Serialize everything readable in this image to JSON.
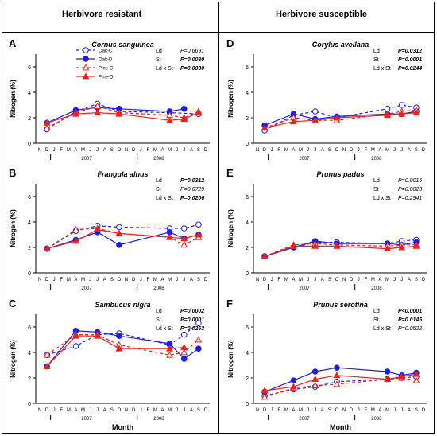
{
  "headers": {
    "left": "Herbivore resistant",
    "right": "Herbivore susceptible"
  },
  "legend": [
    "Oak-C",
    "Oak-D",
    "Pine-C",
    "Pine-D"
  ],
  "colors": {
    "oak": "#1f1fd6",
    "pine": "#e8231f"
  },
  "ylabel": "Nitrogen (%)",
  "xlabel": "Month",
  "months": [
    "N",
    "D",
    "J",
    "F",
    "M",
    "A",
    "M",
    "J",
    "J",
    "A",
    "S",
    "O",
    "N",
    "D",
    "J",
    "F",
    "M",
    "A",
    "M",
    "J",
    "J",
    "A",
    "S",
    "D"
  ],
  "years": [
    "2007",
    "2008"
  ],
  "chart_data": [
    {
      "type": "line",
      "letter": "A",
      "title": "Cornus sanguinea",
      "ylim": [
        0,
        7
      ],
      "yticks": [
        0,
        2,
        4,
        6
      ],
      "stats": [
        {
          "label": "Ld",
          "p": "P=0.6691"
        },
        {
          "label": "St",
          "p": "P=0.0080"
        },
        {
          "label": "Ld x St",
          "p": "P=0.0030"
        }
      ],
      "stats_bold": [
        false,
        true,
        true
      ],
      "series": [
        {
          "name": "Oak-C",
          "x": [
            1,
            5,
            8,
            11,
            18,
            22
          ],
          "values": [
            1.1,
            2.5,
            3.1,
            2.5,
            2.4,
            2.3
          ]
        },
        {
          "name": "Oak-D",
          "x": [
            1,
            5,
            8,
            11,
            18,
            20
          ],
          "values": [
            1.6,
            2.6,
            2.8,
            2.7,
            2.5,
            2.7
          ]
        },
        {
          "name": "Pine-C",
          "x": [
            1,
            5,
            8,
            11,
            18,
            20,
            22
          ],
          "values": [
            1.2,
            2.4,
            2.9,
            2.4,
            2.2,
            2.0,
            2.5
          ]
        },
        {
          "name": "Pine-D",
          "x": [
            1,
            5,
            8,
            11,
            18,
            20,
            22
          ],
          "values": [
            1.6,
            2.3,
            2.4,
            2.3,
            1.8,
            1.9,
            2.4
          ]
        }
      ],
      "show_legend": true,
      "show_xlabel": false
    },
    {
      "type": "line",
      "letter": "B",
      "title": "Frangula alnus",
      "ylim": [
        0,
        7
      ],
      "yticks": [
        0,
        2,
        4,
        6
      ],
      "stats": [
        {
          "label": "Ld",
          "p": "P=0.0312"
        },
        {
          "label": "St",
          "p": "P=0.0729"
        },
        {
          "label": "Ld x St",
          "p": "P=0.0206"
        }
      ],
      "stats_bold": [
        true,
        false,
        true
      ],
      "series": [
        {
          "name": "Oak-C",
          "x": [
            1,
            5,
            8,
            11,
            18,
            20,
            22
          ],
          "values": [
            1.9,
            3.3,
            3.7,
            3.6,
            3.5,
            3.5,
            3.8
          ]
        },
        {
          "name": "Oak-D",
          "x": [
            1,
            5,
            8,
            11,
            18,
            20,
            22
          ],
          "values": [
            1.9,
            2.6,
            3.2,
            2.2,
            3.2,
            2.7,
            3.0
          ]
        },
        {
          "name": "Pine-C",
          "x": [
            1,
            5,
            8,
            11,
            18,
            20,
            22
          ],
          "values": [
            1.9,
            3.4,
            3.5,
            3.1,
            2.8,
            2.2,
            2.8
          ]
        },
        {
          "name": "Pine-D",
          "x": [
            1,
            5,
            8,
            11,
            18,
            20,
            22
          ],
          "values": [
            1.9,
            2.5,
            3.4,
            3.1,
            2.8,
            2.7,
            3.0
          ]
        }
      ],
      "show_legend": false,
      "show_xlabel": false
    },
    {
      "type": "line",
      "letter": "C",
      "title": "Sambucus nigra",
      "ylim": [
        0,
        7
      ],
      "yticks": [
        0,
        2,
        4,
        6
      ],
      "stats": [
        {
          "label": "Ld",
          "p": "P=0.0002"
        },
        {
          "label": "St",
          "p": "P=0.0001"
        },
        {
          "label": "Ld x St",
          "p": "P=0.0263"
        }
      ],
      "stats_bold": [
        true,
        true,
        true
      ],
      "series": [
        {
          "name": "Oak-C",
          "x": [
            1,
            5,
            8,
            11,
            18,
            20,
            22
          ],
          "values": [
            3.8,
            4.5,
            5.4,
            5.5,
            4.6,
            5.4,
            6.3
          ]
        },
        {
          "name": "Oak-D",
          "x": [
            1,
            5,
            8,
            11,
            18,
            20,
            22
          ],
          "values": [
            2.9,
            5.7,
            5.6,
            5.3,
            4.7,
            3.5,
            4.3
          ]
        },
        {
          "name": "Pine-C",
          "x": [
            1,
            5,
            8,
            11,
            18,
            20,
            22
          ],
          "values": [
            3.8,
            5.4,
            5.4,
            4.6,
            3.8,
            4.0,
            5.0
          ]
        },
        {
          "name": "Pine-D",
          "x": [
            1,
            5,
            8,
            11,
            18,
            20
          ],
          "values": [
            2.9,
            5.3,
            5.3,
            4.3,
            4.3,
            4.4
          ]
        }
      ],
      "show_legend": false,
      "show_xlabel": true
    },
    {
      "type": "line",
      "letter": "D",
      "title": "Corylus avellana",
      "ylim": [
        0,
        7
      ],
      "yticks": [
        0,
        2,
        4,
        6
      ],
      "stats": [
        {
          "label": "Ld",
          "p": "P=0.0312"
        },
        {
          "label": "St",
          "p": "P=0.0001"
        },
        {
          "label": "Ld x St",
          "p": "P=0.0244"
        }
      ],
      "stats_bold": [
        true,
        true,
        true
      ],
      "series": [
        {
          "name": "Oak-C",
          "x": [
            1,
            5,
            8,
            11,
            18,
            20,
            22
          ],
          "values": [
            1.0,
            2.2,
            2.5,
            2.0,
            2.7,
            3.0,
            2.8
          ]
        },
        {
          "name": "Oak-D",
          "x": [
            1,
            5,
            8,
            11,
            18,
            20,
            22
          ],
          "values": [
            1.4,
            2.3,
            1.9,
            2.1,
            2.3,
            2.3,
            2.5
          ]
        },
        {
          "name": "Pine-C",
          "x": [
            1,
            5,
            8,
            11,
            18,
            20,
            22
          ],
          "values": [
            1.2,
            2.0,
            1.8,
            1.8,
            2.3,
            2.5,
            2.6
          ]
        },
        {
          "name": "Pine-D",
          "x": [
            1,
            5,
            8,
            11,
            18,
            20,
            22
          ],
          "values": [
            1.2,
            1.7,
            1.8,
            2.0,
            2.2,
            2.3,
            2.4
          ]
        }
      ],
      "show_legend": false,
      "show_xlabel": false
    },
    {
      "type": "line",
      "letter": "E",
      "title": "Prunus padus",
      "ylim": [
        0,
        7
      ],
      "yticks": [
        0,
        2,
        4,
        6
      ],
      "stats": [
        {
          "label": "Ld",
          "p": "P=0.0016"
        },
        {
          "label": "St",
          "p": "P=0.0023"
        },
        {
          "label": "Ld x St",
          "p": "P=0.2941"
        }
      ],
      "stats_bold": [
        false,
        false,
        false
      ],
      "series": [
        {
          "name": "Oak-C",
          "x": [
            1,
            5,
            8,
            11,
            18,
            20,
            22
          ],
          "values": [
            1.3,
            2.0,
            2.4,
            2.4,
            2.3,
            2.5,
            2.6
          ]
        },
        {
          "name": "Oak-D",
          "x": [
            1,
            5,
            8,
            11,
            18,
            20,
            22
          ],
          "values": [
            1.3,
            2.0,
            2.5,
            2.3,
            2.3,
            2.2,
            2.4
          ]
        },
        {
          "name": "Pine-C",
          "x": [
            1,
            5,
            8,
            11,
            18,
            20,
            22
          ],
          "values": [
            1.3,
            2.2,
            2.3,
            2.2,
            2.1,
            2.2,
            2.2
          ]
        },
        {
          "name": "Pine-D",
          "x": [
            1,
            5,
            8,
            11,
            18,
            20,
            22
          ],
          "values": [
            1.3,
            2.1,
            2.1,
            2.1,
            1.9,
            2.0,
            2.1
          ]
        }
      ],
      "show_legend": false,
      "show_xlabel": false
    },
    {
      "type": "line",
      "letter": "F",
      "title": "Prunus serotina",
      "ylim": [
        0,
        7
      ],
      "yticks": [
        0,
        2,
        4,
        6
      ],
      "stats": [
        {
          "label": "Ld",
          "p": "P<0.0001"
        },
        {
          "label": "St",
          "p": "P=0.0145"
        },
        {
          "label": "Ld x St",
          "p": "P=0.0522"
        }
      ],
      "stats_bold": [
        true,
        true,
        false
      ],
      "series": [
        {
          "name": "Oak-C",
          "x": [
            1,
            5,
            8,
            11,
            18,
            20,
            22
          ],
          "values": [
            0.6,
            1.1,
            1.3,
            1.7,
            1.9,
            2.0,
            2.1
          ]
        },
        {
          "name": "Oak-D",
          "x": [
            1,
            5,
            8,
            11,
            18,
            20,
            22
          ],
          "values": [
            0.9,
            1.8,
            2.5,
            2.8,
            2.5,
            2.2,
            2.4
          ]
        },
        {
          "name": "Pine-C",
          "x": [
            1,
            5,
            8,
            11,
            18,
            20,
            22
          ],
          "values": [
            0.5,
            1.2,
            1.4,
            1.5,
            1.9,
            2.0,
            1.8
          ]
        },
        {
          "name": "Pine-D",
          "x": [
            1,
            5,
            8,
            11,
            18,
            20,
            22
          ],
          "values": [
            1.0,
            1.3,
            1.9,
            2.2,
            1.9,
            2.1,
            2.3
          ]
        }
      ],
      "show_legend": false,
      "show_xlabel": true
    }
  ]
}
